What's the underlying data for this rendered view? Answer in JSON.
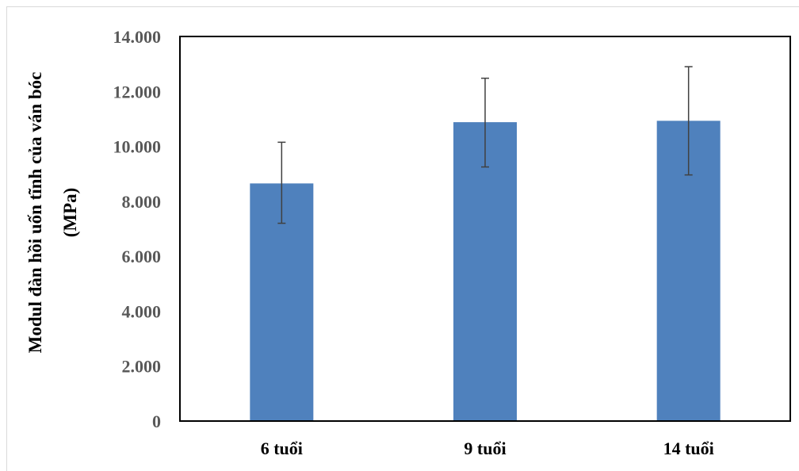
{
  "chart_data": {
    "type": "bar",
    "title": "",
    "xlabel": "",
    "ylabel_lines": [
      "Modul đàn hồi uốn tĩnh của ván bóc",
      "(MPa)"
    ],
    "categories": [
      "6 tuổi",
      "9 tuổi",
      "14 tuổi"
    ],
    "values": [
      8650,
      10880,
      10930
    ],
    "error_bars": [
      {
        "low": 7200,
        "high": 10150
      },
      {
        "low": 9250,
        "high": 12480
      },
      {
        "low": 8960,
        "high": 12900
      }
    ],
    "ylim": [
      0,
      14000
    ],
    "yticks": [
      0,
      2000,
      4000,
      6000,
      8000,
      10000,
      12000,
      14000
    ],
    "ytick_labels": [
      "0",
      "2.000",
      "4.000",
      "6.000",
      "8.000",
      "10.000",
      "12.000",
      "14.000"
    ],
    "grid": false,
    "legend": "none",
    "colors": {
      "bar": "#4f81bd",
      "error_bar": "#404040",
      "axis": "#000000",
      "tick_label": "#595959"
    }
  }
}
